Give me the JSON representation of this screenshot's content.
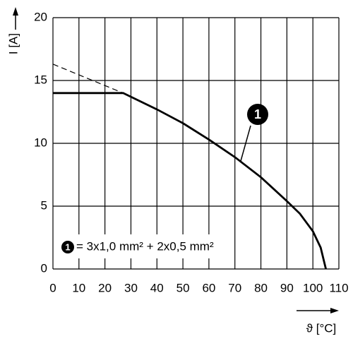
{
  "chart_data": {
    "type": "line",
    "xlabel": "ϑ [°C]",
    "ylabel": "I [A]",
    "annotation": "1",
    "legend_text": "= 3x1,0 mm² + 2x0,5 mm²",
    "xlim": [
      0,
      110
    ],
    "ylim": [
      0,
      20
    ],
    "xticks": [
      0,
      10,
      20,
      30,
      40,
      50,
      60,
      70,
      80,
      90,
      100,
      110
    ],
    "yticks": [
      0,
      5,
      10,
      15,
      20
    ],
    "grid": true,
    "series": [
      {
        "color": "#000000",
        "style": "solid",
        "x": [
          0,
          27,
          30,
          40,
          50,
          60,
          70,
          80,
          90,
          95,
          100,
          103,
          105
        ],
        "values": [
          14,
          14,
          13.7,
          12.7,
          11.6,
          10.3,
          8.9,
          7.3,
          5.4,
          4.4,
          3.0,
          1.7,
          0
        ]
      },
      {
        "color": "#000000",
        "style": "dashed",
        "x": [
          0,
          27
        ],
        "values": [
          16.3,
          14
        ]
      }
    ]
  }
}
